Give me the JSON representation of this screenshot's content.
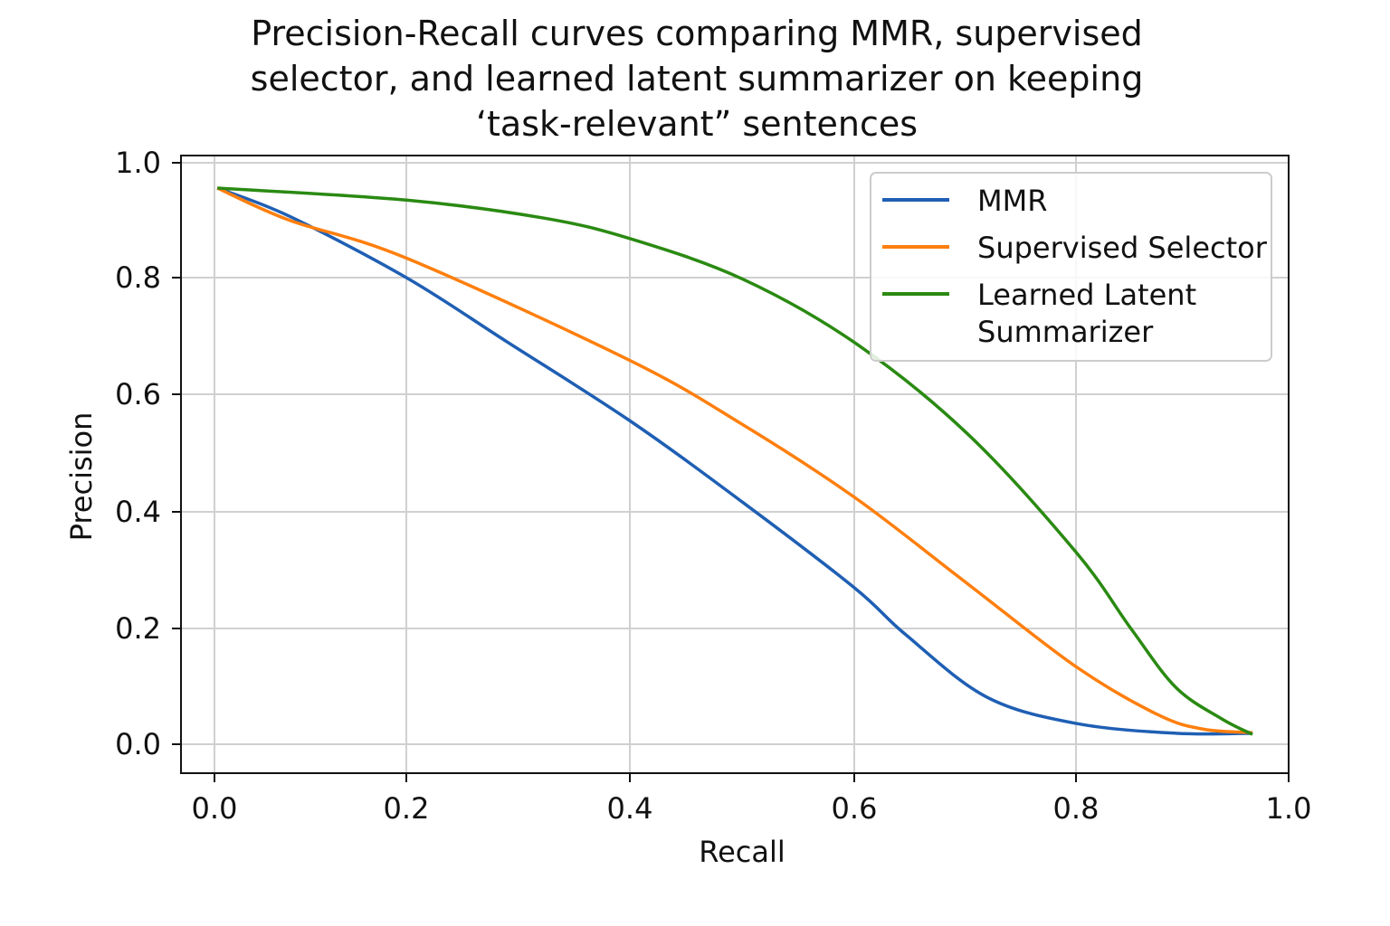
{
  "chart_data": {
    "type": "line",
    "title_lines": [
      "Precision-Recall curves comparing MMR, supervised",
      "selector, and learned latent summarizer on keeping",
      "‘task-relevant” sentences"
    ],
    "xlabel": "Recall",
    "ylabel": "Precision",
    "xlim": [
      -0.03,
      1.0
    ],
    "ylim": [
      -0.05,
      1.01
    ],
    "xticks": [
      "0.0",
      "0.2",
      "0.4",
      "0.6",
      "0.8",
      "1.0"
    ],
    "yticks": [
      "0.0",
      "0.2",
      "0.4",
      "0.6",
      "0.8",
      "1.0"
    ],
    "grid": true,
    "legend_position": "top-right",
    "series": [
      {
        "name": "MMR",
        "color": "#1f5fb4",
        "x": [
          0.003,
          0.078,
          0.2,
          0.29,
          0.4,
          0.5,
          0.6,
          0.646,
          0.719,
          0.8,
          0.894,
          0.966
        ],
        "y": [
          0.956,
          0.907,
          0.8,
          0.69,
          0.555,
          0.417,
          0.27,
          0.19,
          0.082,
          0.036,
          0.019,
          0.019
        ]
      },
      {
        "name": "Supervised Selector",
        "color": "#ff7f0e",
        "x": [
          0.003,
          0.078,
          0.2,
          0.4,
          0.5,
          0.6,
          0.702,
          0.8,
          0.877,
          0.92,
          0.966
        ],
        "y": [
          0.956,
          0.9,
          0.834,
          0.658,
          0.549,
          0.425,
          0.277,
          0.134,
          0.051,
          0.026,
          0.02
        ]
      },
      {
        "name": "Learned Latent\nSummarizer",
        "color": "#2a8a12",
        "x": [
          0.003,
          0.2,
          0.322,
          0.4,
          0.5,
          0.6,
          0.702,
          0.8,
          0.852,
          0.894,
          0.937,
          0.966
        ],
        "y": [
          0.956,
          0.935,
          0.904,
          0.868,
          0.798,
          0.689,
          0.533,
          0.331,
          0.199,
          0.098,
          0.044,
          0.017
        ]
      }
    ]
  }
}
